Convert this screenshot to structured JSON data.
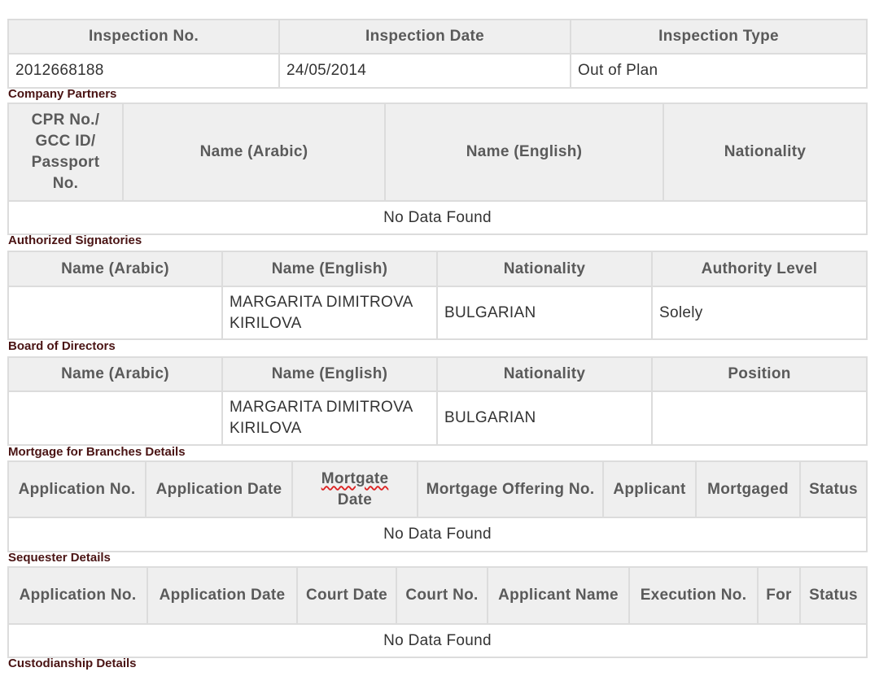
{
  "sections": [
    {
      "id": "inspection",
      "label": "",
      "headers": [
        "Inspection No.",
        "Inspection Date",
        "Inspection Type"
      ],
      "rows": [
        [
          "2012668188",
          "24/05/2014",
          "Out of Plan"
        ]
      ],
      "no_data": ""
    },
    {
      "id": "company-partners",
      "label": "Company Partners",
      "headers": [
        "CPR No./ GCC ID/ Passport No.",
        "Name (Arabic)",
        "Name (English)",
        "Nationality"
      ],
      "rows": [],
      "no_data": "No Data Found"
    },
    {
      "id": "authorized-signatories",
      "label": "Authorized Signatories",
      "headers": [
        "Name (Arabic)",
        "Name (English)",
        "Nationality",
        "Authority Level"
      ],
      "rows": [
        [
          "",
          "MARGARITA DIMITROVA KIRILOVA",
          "BULGARIAN",
          "Solely"
        ]
      ],
      "no_data": ""
    },
    {
      "id": "board-of-directors",
      "label": "Board of Directors",
      "headers": [
        "Name (Arabic)",
        "Name (English)",
        "Nationality",
        "Position"
      ],
      "rows": [
        [
          "",
          "MARGARITA DIMITROVA KIRILOVA",
          "BULGARIAN",
          ""
        ]
      ],
      "no_data": ""
    },
    {
      "id": "mortgage-branches",
      "label": "Mortgage for Branches Details",
      "headers": [
        "Application No.",
        "Application Date",
        "Mortgate Date",
        "Mortgage Offering No.",
        "Applicant",
        "Mortgaged",
        "Status"
      ],
      "rows": [],
      "no_data": "No Data Found"
    },
    {
      "id": "sequester",
      "label": "Sequester Details",
      "headers": [
        "Application No.",
        "Application Date",
        "Court Date",
        "Court No.",
        "Applicant Name",
        "Execution No.",
        "For",
        "Status"
      ],
      "rows": [],
      "no_data": "No Data Found"
    },
    {
      "id": "custodianship",
      "label": "Custodianship Details",
      "headers": [],
      "rows": [],
      "no_data": ""
    }
  ]
}
